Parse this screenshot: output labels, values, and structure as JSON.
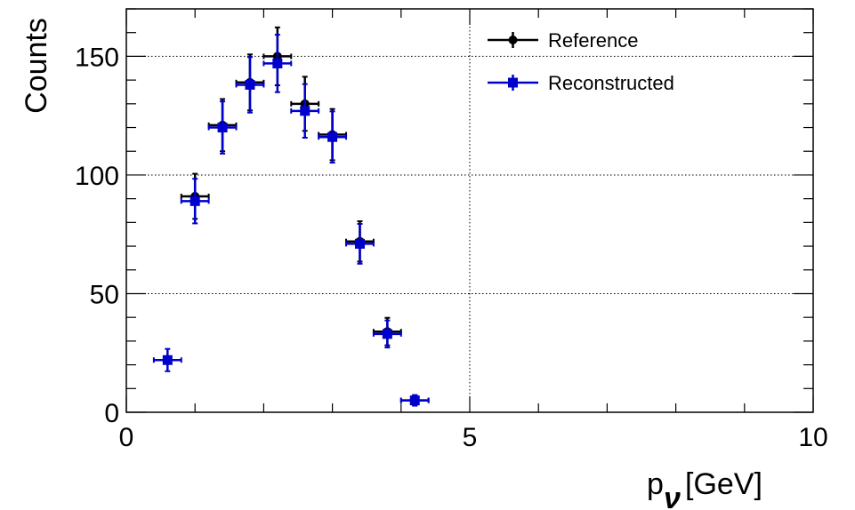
{
  "chart_data": {
    "type": "scatter",
    "title": "",
    "xlabel_main": "p",
    "xlabel_sub": "ν",
    "xlabel_unit": "[GeV]",
    "ylabel": "Counts",
    "xlim": [
      0,
      10
    ],
    "ylim": [
      0,
      170
    ],
    "x_ticks": [
      0,
      5,
      10
    ],
    "y_ticks": [
      0,
      50,
      100,
      150
    ],
    "x_tick_labels": [
      "0",
      "5",
      "10"
    ],
    "y_tick_labels": [
      "0",
      "50",
      "100",
      "150"
    ],
    "grid": true,
    "legend_position": "top-right",
    "series": [
      {
        "name": "Reference",
        "color": "#000000",
        "marker": "circle",
        "x": [
          1.0,
          1.4,
          1.8,
          2.2,
          2.6,
          3.0,
          3.4,
          3.8,
          4.2
        ],
        "y": [
          91,
          121,
          139,
          150,
          130,
          117,
          72,
          34,
          5
        ],
        "xerr": [
          0.2,
          0.2,
          0.2,
          0.2,
          0.2,
          0.2,
          0.2,
          0.2,
          0.2
        ],
        "yerr": [
          9.5,
          11.0,
          11.8,
          12.2,
          11.4,
          10.8,
          8.5,
          5.8,
          2.2
        ]
      },
      {
        "name": "Reconstructed",
        "color": "#0000cc",
        "marker": "square",
        "x": [
          0.6,
          1.0,
          1.4,
          1.8,
          2.2,
          2.6,
          3.0,
          3.4,
          3.8,
          4.2
        ],
        "y": [
          22,
          89,
          120,
          138,
          147,
          127,
          116,
          71,
          33,
          5
        ],
        "xerr": [
          0.2,
          0.2,
          0.2,
          0.2,
          0.2,
          0.2,
          0.2,
          0.2,
          0.2,
          0.2
        ],
        "yerr": [
          4.7,
          9.4,
          11.0,
          11.7,
          12.1,
          11.3,
          10.8,
          8.4,
          5.7,
          2.2
        ]
      }
    ]
  }
}
